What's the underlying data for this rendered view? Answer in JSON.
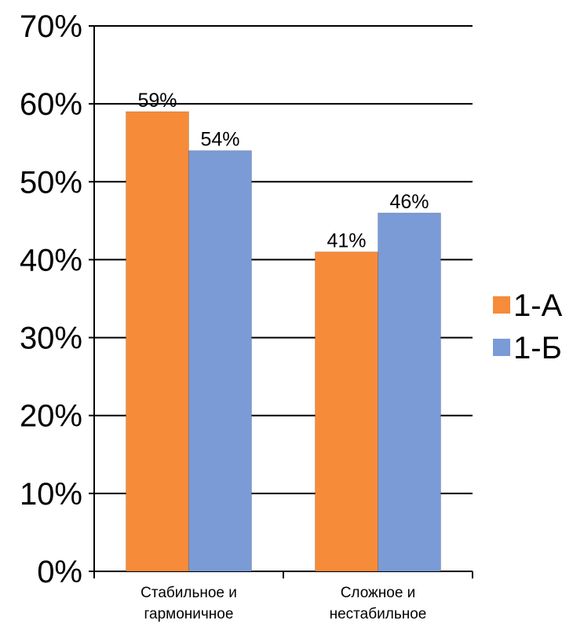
{
  "chart_data": {
    "type": "bar",
    "categories": [
      [
        "Стабильное и",
        "гармоничное"
      ],
      [
        "Сложное и",
        "нестабильное"
      ]
    ],
    "series": [
      {
        "name": "1-А",
        "values": [
          59,
          41
        ],
        "color": "#F68B3A",
        "labels": [
          "59%",
          "41%"
        ]
      },
      {
        "name": "1-Б",
        "values": [
          54,
          46
        ],
        "color": "#7A9BD6",
        "labels": [
          "54%",
          "46%"
        ]
      }
    ],
    "yticks": [
      "0%",
      "10%",
      "20%",
      "30%",
      "40%",
      "50%",
      "60%",
      "70%"
    ],
    "ylim": [
      0,
      70
    ],
    "grid": true,
    "legend_position": "right"
  }
}
